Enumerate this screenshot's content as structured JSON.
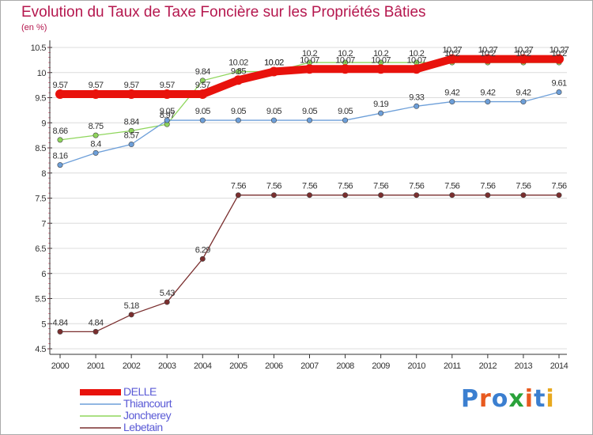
{
  "title": "Evolution du Taux de Taxe Foncière sur les Propriétés Bâties",
  "unit_label": "(en %)",
  "brand": {
    "text": "Proxiti",
    "colors": [
      "#3b7fd0",
      "#e85a1f",
      "#3b7fd0",
      "#2aa23a",
      "#e85a1f",
      "#3b7fd0",
      "#e8a91f"
    ]
  },
  "chart_data": {
    "type": "line",
    "title": "Evolution du Taux de Taxe Foncière sur les Propriétés Bâties",
    "ylabel": "(en %)",
    "xlabel": "",
    "ylim": [
      4.5,
      10.5
    ],
    "yticks": [
      4.5,
      5,
      5.5,
      6,
      6.5,
      7,
      7.5,
      8,
      8.5,
      9,
      9.5,
      10,
      10.5
    ],
    "x": [
      "2000",
      "2001",
      "2002",
      "2003",
      "2004",
      "2005",
      "2006",
      "2007",
      "2008",
      "2009",
      "2010",
      "2011",
      "2012",
      "2013",
      "2014"
    ],
    "series": [
      {
        "name": "DELLE",
        "color": "#e8120c",
        "values": [
          9.57,
          9.57,
          9.57,
          9.57,
          9.57,
          9.85,
          10.02,
          10.07,
          10.07,
          10.07,
          10.07,
          10.27,
          10.27,
          10.27,
          10.27
        ],
        "labels": [
          "9.57",
          "9.57",
          "9.57",
          "9.57",
          "9.57",
          "9.85",
          "10.02",
          "10.07",
          "10.07",
          "10.07",
          "10.07",
          "10.27",
          "10.27",
          "10.27",
          "10.27"
        ]
      },
      {
        "name": "Thiancourt",
        "color": "#6d9fd9",
        "values": [
          8.16,
          8.4,
          8.57,
          9.05,
          9.05,
          9.05,
          9.05,
          9.05,
          9.05,
          9.19,
          9.33,
          9.42,
          9.42,
          9.42,
          9.61
        ],
        "labels": [
          "8.16",
          "8.4",
          "8.57",
          "9.05",
          "9.05",
          "9.05",
          "9.05",
          "9.05",
          "9.05",
          "9.19",
          "9.33",
          "9.42",
          "9.42",
          "9.42",
          "9.61"
        ]
      },
      {
        "name": "Joncherey",
        "color": "#8fd65c",
        "values": [
          8.66,
          8.75,
          8.84,
          8.97,
          9.84,
          10.02,
          10.02,
          10.2,
          10.2,
          10.2,
          10.2,
          10.2,
          10.2,
          10.2,
          10.2
        ],
        "labels": [
          "8.66",
          "8.75",
          "8.84",
          "8.97",
          "9.84",
          "10.02",
          "10.02",
          "10.2",
          "10.2",
          "10.2",
          "10.2",
          "10.2",
          "10.2",
          "10.2",
          "10.2"
        ]
      },
      {
        "name": "Lebetain",
        "color": "#7a2e2e",
        "values": [
          4.84,
          4.84,
          5.18,
          5.43,
          6.29,
          7.56,
          7.56,
          7.56,
          7.56,
          7.56,
          7.56,
          7.56,
          7.56,
          7.56,
          7.56
        ],
        "labels": [
          "4.84",
          "4.84",
          "5.18",
          "5.43",
          "6.29",
          "7.56",
          "7.56",
          "7.56",
          "7.56",
          "7.56",
          "7.56",
          "7.56",
          "7.56",
          "7.56",
          "7.56"
        ]
      }
    ]
  }
}
